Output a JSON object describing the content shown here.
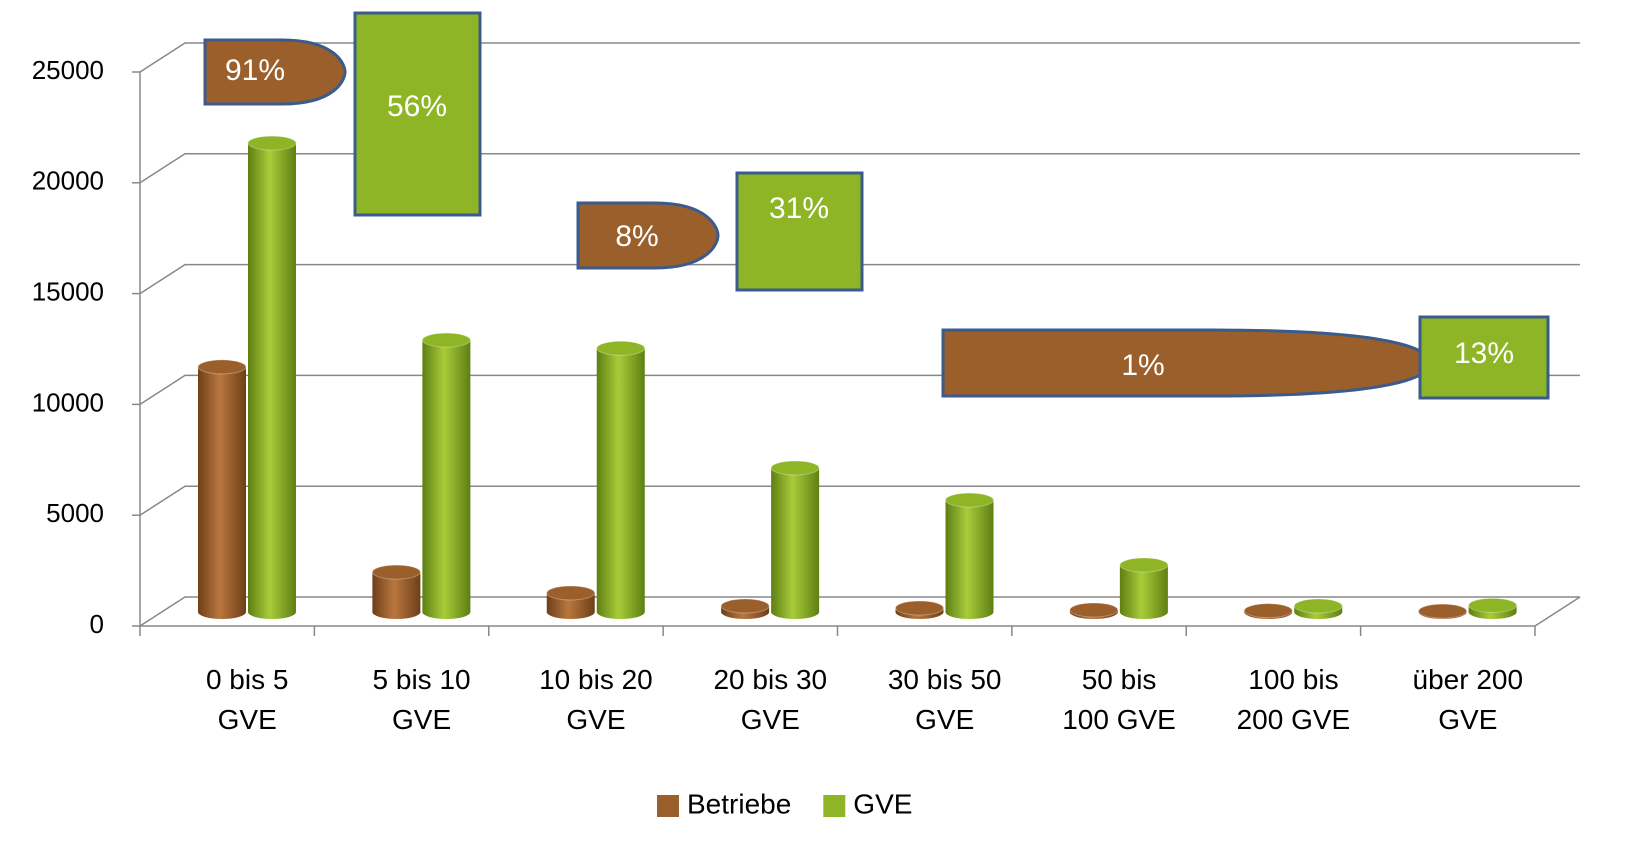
{
  "chart_data": {
    "type": "bar3d",
    "categories": [
      "0 bis 5 GVE",
      "5 bis 10 GVE",
      "10 bis 20 GVE",
      "20 bis 30 GVE",
      "30 bis 50 GVE",
      "50 bis 100 GVE",
      "100 bis 200 GVE",
      "über 200 GVE"
    ],
    "series": [
      {
        "name": "Betriebe",
        "color": "#9b5f2c",
        "values": [
          11060,
          1800,
          860,
          270,
          180,
          90,
          60,
          40
        ]
      },
      {
        "name": "GVE",
        "color": "#8db526",
        "values": [
          21160,
          12270,
          11900,
          6500,
          5050,
          2120,
          270,
          300
        ]
      }
    ],
    "ylim": [
      0,
      25000
    ],
    "yticks": [
      0,
      5000,
      10000,
      15000,
      20000,
      25000
    ],
    "grid": true,
    "annotations": [
      "91%",
      "56%",
      "8%",
      "31%",
      "1%",
      "13%"
    ],
    "legend": "bottom"
  }
}
